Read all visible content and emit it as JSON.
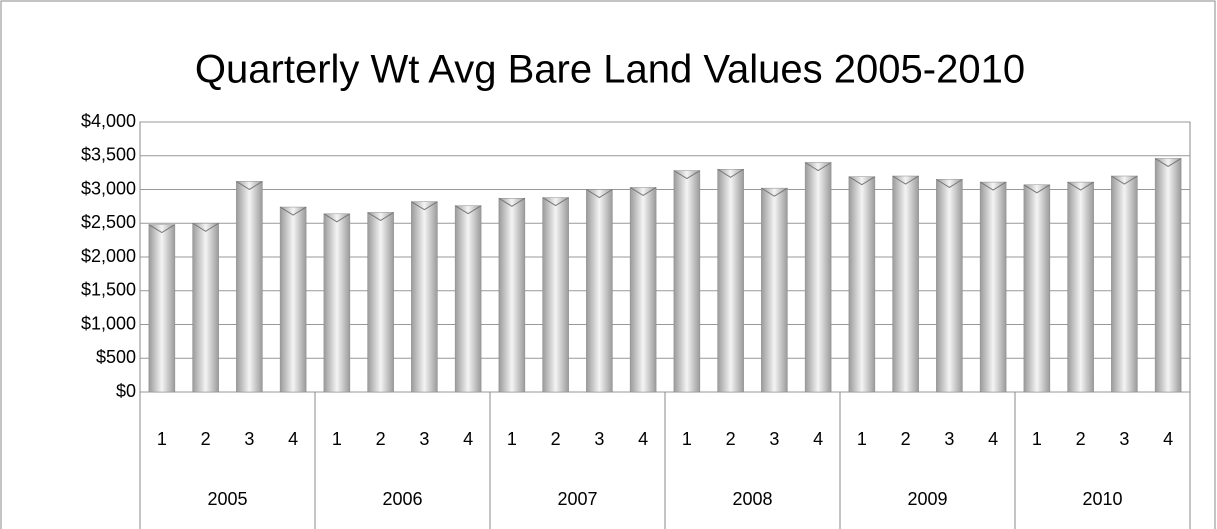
{
  "chart_data": {
    "type": "bar",
    "title": "Quarterly Wt Avg Bare Land Values 2005-2010",
    "categories": [
      "1",
      "2",
      "3",
      "4",
      "1",
      "2",
      "3",
      "4",
      "1",
      "2",
      "3",
      "4",
      "1",
      "2",
      "3",
      "4",
      "1",
      "2",
      "3",
      "4",
      "1",
      "2",
      "3",
      "4"
    ],
    "groups": [
      "2005",
      "2006",
      "2007",
      "2008",
      "2009",
      "2010"
    ],
    "values": [
      2480,
      2500,
      3120,
      2740,
      2640,
      2660,
      2820,
      2760,
      2870,
      2880,
      3000,
      3030,
      3280,
      3300,
      3020,
      3400,
      3190,
      3200,
      3150,
      3110,
      3070,
      3110,
      3200,
      3460
    ],
    "color": "#9a9a9a",
    "ylim": [
      0,
      4000
    ],
    "yticks": [
      {
        "value": 0,
        "label": "$0"
      },
      {
        "value": 500,
        "label": "$500"
      },
      {
        "value": 1000,
        "label": "$1,000"
      },
      {
        "value": 1500,
        "label": "$1,500"
      },
      {
        "value": 2000,
        "label": "$2,000"
      },
      {
        "value": 2500,
        "label": "$2,500"
      },
      {
        "value": 3000,
        "label": "$3,000"
      },
      {
        "value": 3500,
        "label": "$3,500"
      },
      {
        "value": 4000,
        "label": "$4,000"
      }
    ],
    "grid": true
  }
}
